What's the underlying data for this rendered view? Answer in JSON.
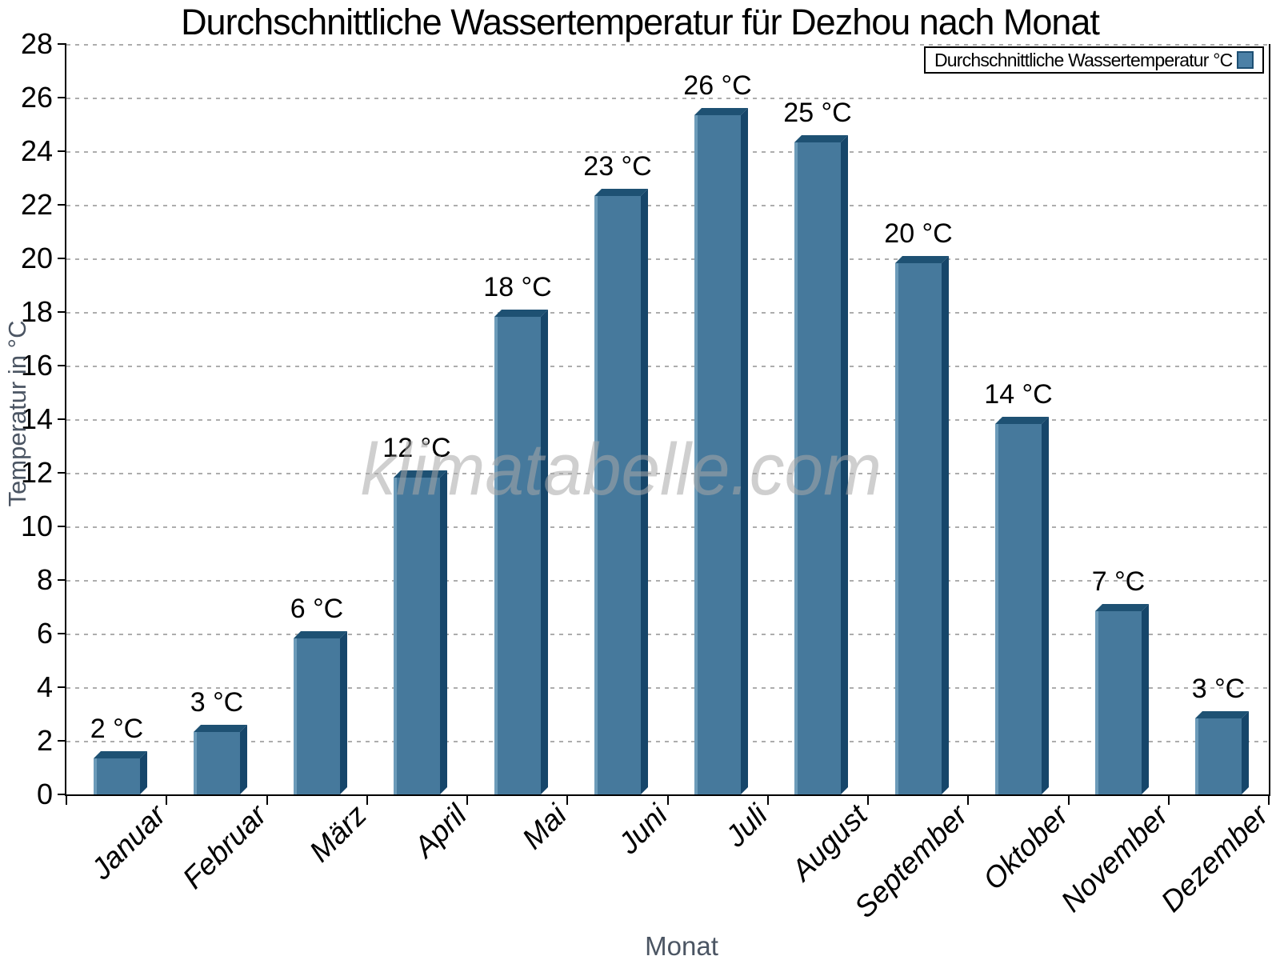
{
  "title": "Durchschnittliche Wassertemperatur für Dezhou nach Monat",
  "legend": {
    "label": "Durchschnittliche Wassertemperatur °C"
  },
  "watermark": "klimatabelle.com",
  "x_axis": {
    "label": "Monat"
  },
  "y_axis": {
    "label": "Temperatur in °C"
  },
  "chart_data": {
    "type": "bar",
    "title": "Durchschnittliche Wassertemperatur für Dezhou nach Monat",
    "series_name": "Durchschnittliche Wassertemperatur °C",
    "categories": [
      "Januar",
      "Februar",
      "März",
      "April",
      "Mai",
      "Juni",
      "Juli",
      "August",
      "September",
      "Oktober",
      "November",
      "Dezember"
    ],
    "values": [
      2,
      3,
      6,
      12,
      18,
      23,
      26,
      25,
      20,
      14,
      7,
      3
    ],
    "value_labels": [
      "2 °C",
      "3 °C",
      "6 °C",
      "12 °C",
      "18 °C",
      "23 °C",
      "26 °C",
      "25 °C",
      "20 °C",
      "14 °C",
      "7 °C",
      "3 °C"
    ],
    "drawn_values": [
      1.6,
      2.6,
      6.1,
      12.1,
      18.1,
      22.6,
      25.6,
      24.6,
      20.1,
      14.1,
      7.1,
      3.1
    ],
    "xlabel": "Monat",
    "ylabel": "Temperatur in °C",
    "ylim": [
      0,
      28
    ],
    "y_ticks": [
      0,
      2,
      4,
      6,
      8,
      10,
      12,
      14,
      16,
      18,
      20,
      22,
      24,
      26,
      28
    ],
    "grid": "dashed horizontal",
    "legend_position": "top-right",
    "bar_style": "3d-extruded",
    "colors": {
      "bar_face": "#46799C",
      "bar_face_highlight": "#6C9BB9",
      "bar_top": "#1E5173",
      "bar_side": "#16466A",
      "legend_swatch": "#4B80A6",
      "grid": "#ADADAD",
      "axis": "#000000",
      "axis_title_text": "#4B5563",
      "watermark": "#A8A8A8"
    }
  }
}
